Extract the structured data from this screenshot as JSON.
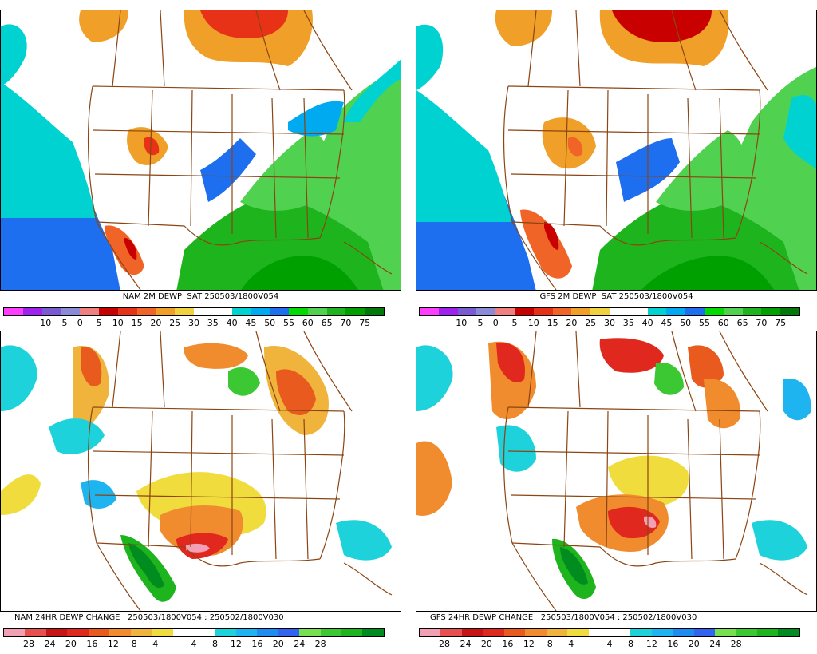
{
  "palettes": {
    "dewpoint": [
      "#ff3dff",
      "#a020f0",
      "#7a5ad2",
      "#8a8ad6",
      "#f08080",
      "#c80000",
      "#e83218",
      "#f06428",
      "#f0a028",
      "#f0d23c",
      "#ffffff",
      "#ffffff",
      "#00d2d2",
      "#00aaf0",
      "#1e6ef0",
      "#00dc00",
      "#50d250",
      "#1eb41e",
      "#00a000",
      "#00780a"
    ],
    "change": [
      "#f4a0b4",
      "#e85050",
      "#c81414",
      "#e0281e",
      "#e85a1e",
      "#f08c2e",
      "#f0b43c",
      "#f0dc3c",
      "#ffffff",
      "#ffffff",
      "#1ed2dc",
      "#1eb4f0",
      "#1e8cf0",
      "#3264f0",
      "#78e050",
      "#3cc832",
      "#1eb41e",
      "#008c1e"
    ]
  },
  "panels": [
    {
      "id": "nam-2m-dewp",
      "caption": "NAM 2M DEWP  SAT 250503/1800V054",
      "palette": "dewpoint",
      "ticks": [
        "-10",
        "-5",
        "0",
        "5",
        "10",
        "15",
        "20",
        "25",
        "30",
        "35",
        "40",
        "45",
        "50",
        "55",
        "60",
        "65",
        "70",
        "75"
      ]
    },
    {
      "id": "gfs-2m-dewp",
      "caption": "GFS 2M DEWP  SAT 250503/1800V054",
      "palette": "dewpoint",
      "ticks": [
        "-10",
        "-5",
        "0",
        "5",
        "10",
        "15",
        "20",
        "25",
        "30",
        "35",
        "40",
        "45",
        "50",
        "55",
        "60",
        "65",
        "70",
        "75"
      ]
    },
    {
      "id": "nam-24hr-dewp-change",
      "caption": "NAM 24HR DEWP CHANGE   250503/1800V054 : 250502/1800V030",
      "palette": "change",
      "ticks": [
        "-28",
        "-24",
        "-20",
        "-16",
        "-12",
        "-8",
        "-4",
        "4",
        "8",
        "12",
        "16",
        "20",
        "24",
        "28"
      ]
    },
    {
      "id": "gfs-24hr-dewp-change",
      "caption": "GFS 24HR DEWP CHANGE   250503/1800V054 : 250502/1800V030",
      "palette": "change",
      "ticks": [
        "-28",
        "-24",
        "-20",
        "-16",
        "-12",
        "-8",
        "-4",
        "4",
        "8",
        "12",
        "16",
        "20",
        "24",
        "28"
      ]
    }
  ]
}
